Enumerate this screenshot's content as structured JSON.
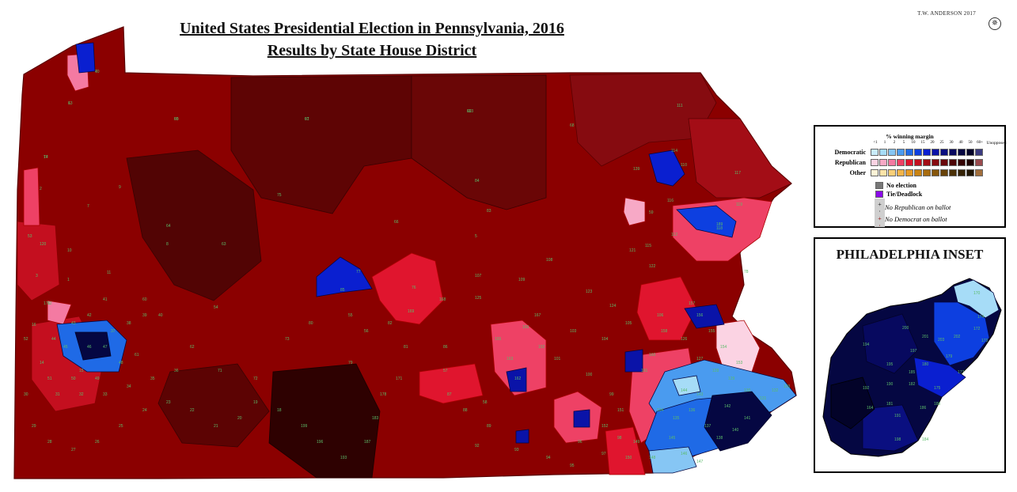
{
  "title": {
    "line1": "United States Presidential Election in Pennsylvania, 2016",
    "line2": "Results by State House District"
  },
  "credit": "T.W. ANDERSON 2017",
  "colors": {
    "map_background": "#ffffff",
    "republican_base": "#8b0000",
    "republican_dark": "#5a0000",
    "republican_darkest": "#2b0000",
    "republican_light": "#e8334a",
    "republican_pink": "#f07aa0",
    "democratic_base": "#1010c8",
    "democratic_dark": "#050540",
    "democratic_light": "#3a8ef0",
    "democratic_pale": "#a8d8f5"
  },
  "legend": {
    "title": "% winning margin",
    "ticks": [
      "<1",
      "1",
      "2",
      "5",
      "10",
      "15",
      "20",
      "25",
      "30",
      "40",
      "50",
      "60+",
      "Unopposed"
    ],
    "rows": [
      {
        "label": "Democratic",
        "colors": [
          "#c9ecfb",
          "#a6dcf7",
          "#86c6f4",
          "#4a9bef",
          "#1f6ae6",
          "#0d3fe0",
          "#0a1fd0",
          "#0a13a8",
          "#0a0f80",
          "#07095f",
          "#050742",
          "#030329",
          "#3b3b80"
        ]
      },
      {
        "label": "Republican",
        "colors": [
          "#fbd3e3",
          "#f7a9c6",
          "#f47aa2",
          "#ee4165",
          "#e0152e",
          "#c40f1f",
          "#a30d16",
          "#860b10",
          "#6a080b",
          "#4e0507",
          "#350303",
          "#1e0101",
          "#9a4a4e"
        ]
      },
      {
        "label": "Other",
        "colors": [
          "#fdf3d6",
          "#fbe3a8",
          "#f8cf78",
          "#f1b449",
          "#e69a24",
          "#c98312",
          "#a86c0f",
          "#86560c",
          "#674209",
          "#4a3006",
          "#332104",
          "#1f1402",
          "#a16e3c"
        ]
      }
    ],
    "no_election": {
      "label": "No election",
      "color": "#777777"
    },
    "tie": {
      "label": "Tie/Deadlock",
      "color": "#8a0ae8"
    },
    "no_rep_label": "No Republican on ballot",
    "no_dem_label": "No Democrat on ballot",
    "no_rep_symbol": "+",
    "no_dem_symbol": "+"
  },
  "inset": {
    "title": "PHILADELPHIA INSET",
    "district_labels": [
      "200",
      "201",
      "203",
      "202",
      "194",
      "197",
      "179",
      "180",
      "170",
      "174",
      "173",
      "172",
      "177",
      "195",
      "185",
      "190",
      "192",
      "182",
      "175",
      "188",
      "186",
      "191",
      "181",
      "184",
      "164",
      "198"
    ]
  },
  "map_labels": [
    "6",
    "4",
    "17",
    "65",
    "67",
    "69",
    "68",
    "111",
    "110",
    "139",
    "117",
    "2",
    "7",
    "9",
    "64",
    "75",
    "84",
    "83",
    "114",
    "116",
    "112",
    "118",
    "119",
    "120",
    "10",
    "8",
    "63",
    "66",
    "76",
    "5",
    "3",
    "1",
    "176",
    "115",
    "189",
    "78",
    "77",
    "85",
    "107",
    "108",
    "109",
    "125",
    "123",
    "124",
    "121",
    "122",
    "11",
    "12",
    "16",
    "14",
    "15",
    "60",
    "61",
    "62",
    "71",
    "72",
    "73",
    "80",
    "79",
    "81",
    "82",
    "86",
    "87",
    "88",
    "89",
    "92",
    "93",
    "94",
    "95",
    "96",
    "97",
    "98",
    "99",
    "100",
    "101",
    "102",
    "103",
    "104",
    "105",
    "106",
    "126",
    "127",
    "128",
    "129",
    "130",
    "131",
    "132",
    "133",
    "134",
    "135",
    "136",
    "137",
    "138",
    "140",
    "141",
    "142",
    "143",
    "144",
    "145",
    "146",
    "147",
    "148",
    "149",
    "150",
    "151",
    "152",
    "153",
    "154",
    "155",
    "156",
    "157",
    "158",
    "160",
    "161",
    "162",
    "163",
    "165",
    "166",
    "167",
    "168",
    "169",
    "171",
    "178",
    "183",
    "187",
    "193",
    "196",
    "199",
    "18",
    "19",
    "20",
    "21",
    "22",
    "23",
    "24",
    "25",
    "26",
    "27",
    "28",
    "29",
    "30",
    "31",
    "32",
    "33",
    "34",
    "35",
    "36",
    "37",
    "38",
    "39",
    "40",
    "41",
    "42",
    "43",
    "44",
    "45",
    "46",
    "47",
    "48",
    "49",
    "50",
    "51",
    "52",
    "53",
    "54",
    "55",
    "56",
    "57",
    "58",
    "59",
    "13",
    "70",
    "74",
    "90",
    "91",
    "113"
  ]
}
